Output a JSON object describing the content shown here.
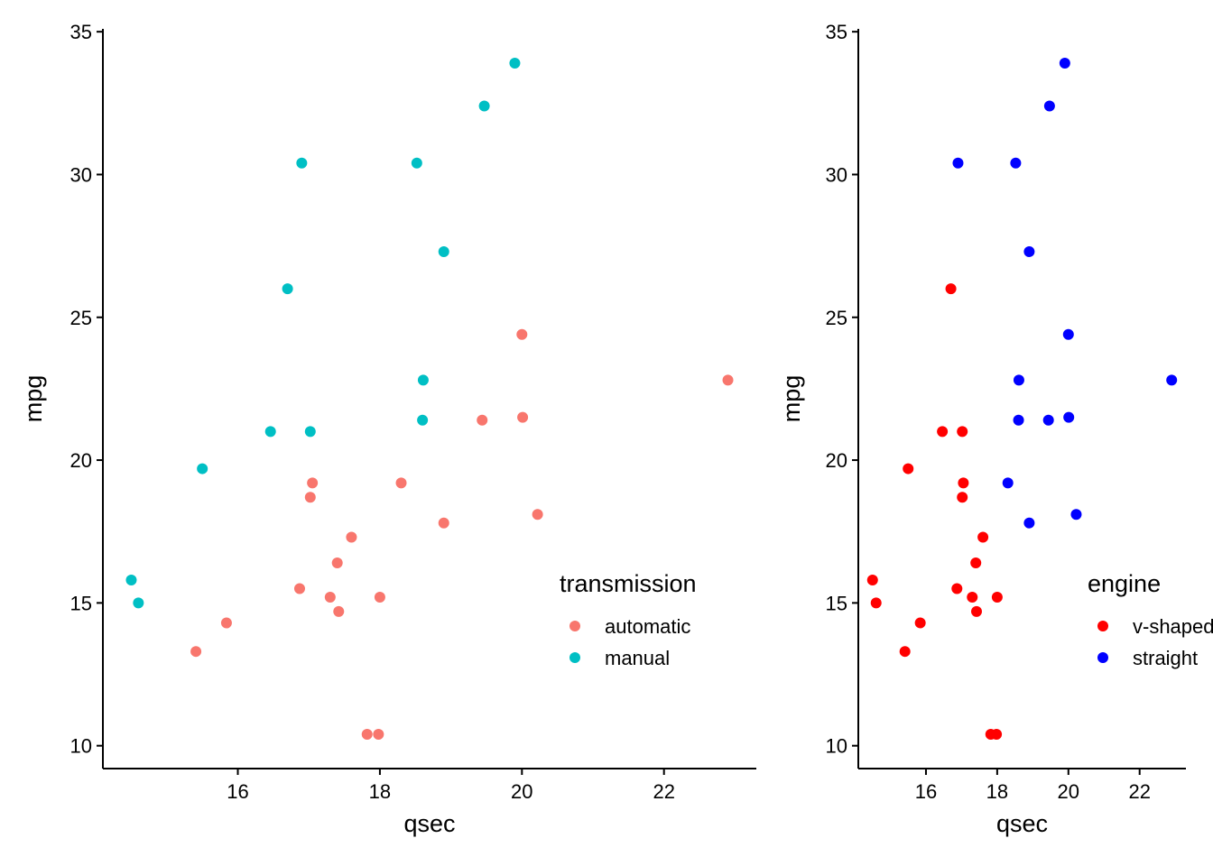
{
  "chart_data": [
    {
      "type": "scatter",
      "title": "",
      "xlabel": "qsec",
      "ylabel": "mpg",
      "xlim": [
        14.1,
        23.3
      ],
      "ylim": [
        9.2,
        35.1
      ],
      "xticks": [
        16,
        18,
        20,
        22
      ],
      "yticks": [
        10,
        15,
        20,
        25,
        30,
        35
      ],
      "grid": false,
      "legend": {
        "title": "transmission",
        "position": "bottom-right inside"
      },
      "series": [
        {
          "name": "automatic",
          "color": "#F8766D",
          "points": [
            {
              "x": 20.0,
              "y": 24.4
            },
            {
              "x": 22.9,
              "y": 22.8
            },
            {
              "x": 19.44,
              "y": 21.4
            },
            {
              "x": 20.01,
              "y": 21.5
            },
            {
              "x": 18.3,
              "y": 19.2
            },
            {
              "x": 17.05,
              "y": 19.2
            },
            {
              "x": 17.02,
              "y": 18.7
            },
            {
              "x": 18.9,
              "y": 17.8
            },
            {
              "x": 20.22,
              "y": 18.1
            },
            {
              "x": 17.6,
              "y": 17.3
            },
            {
              "x": 17.4,
              "y": 16.4
            },
            {
              "x": 16.87,
              "y": 15.5
            },
            {
              "x": 17.3,
              "y": 15.2
            },
            {
              "x": 18.0,
              "y": 15.2
            },
            {
              "x": 17.42,
              "y": 14.7
            },
            {
              "x": 15.84,
              "y": 14.3
            },
            {
              "x": 15.41,
              "y": 13.3
            },
            {
              "x": 17.82,
              "y": 10.4
            },
            {
              "x": 17.98,
              "y": 10.4
            }
          ]
        },
        {
          "name": "manual",
          "color": "#00BFC4",
          "points": [
            {
              "x": 19.9,
              "y": 33.9
            },
            {
              "x": 19.47,
              "y": 32.4
            },
            {
              "x": 16.9,
              "y": 30.4
            },
            {
              "x": 18.52,
              "y": 30.4
            },
            {
              "x": 18.9,
              "y": 27.3
            },
            {
              "x": 16.7,
              "y": 26.0
            },
            {
              "x": 18.61,
              "y": 22.8
            },
            {
              "x": 18.6,
              "y": 21.4
            },
            {
              "x": 16.46,
              "y": 21.0
            },
            {
              "x": 17.02,
              "y": 21.0
            },
            {
              "x": 15.5,
              "y": 19.7
            },
            {
              "x": 14.5,
              "y": 15.8
            },
            {
              "x": 14.6,
              "y": 15.0
            }
          ]
        }
      ]
    },
    {
      "type": "scatter",
      "title": "",
      "xlabel": "qsec",
      "ylabel": "mpg",
      "xlim": [
        14.1,
        23.3
      ],
      "ylim": [
        9.2,
        35.1
      ],
      "xticks": [
        16,
        18,
        20,
        22
      ],
      "yticks": [
        10,
        15,
        20,
        25,
        30,
        35
      ],
      "grid": false,
      "legend": {
        "title": "engine",
        "position": "bottom-right inside"
      },
      "series": [
        {
          "name": "v-shaped",
          "color": "#FF0000",
          "points": [
            {
              "x": 16.7,
              "y": 26.0
            },
            {
              "x": 16.46,
              "y": 21.0
            },
            {
              "x": 17.02,
              "y": 21.0
            },
            {
              "x": 15.5,
              "y": 19.7
            },
            {
              "x": 17.05,
              "y": 19.2
            },
            {
              "x": 17.02,
              "y": 18.7
            },
            {
              "x": 17.6,
              "y": 17.3
            },
            {
              "x": 17.4,
              "y": 16.4
            },
            {
              "x": 14.5,
              "y": 15.8
            },
            {
              "x": 16.87,
              "y": 15.5
            },
            {
              "x": 17.3,
              "y": 15.2
            },
            {
              "x": 18.0,
              "y": 15.2
            },
            {
              "x": 14.6,
              "y": 15.0
            },
            {
              "x": 17.42,
              "y": 14.7
            },
            {
              "x": 15.84,
              "y": 14.3
            },
            {
              "x": 15.41,
              "y": 13.3
            },
            {
              "x": 17.82,
              "y": 10.4
            },
            {
              "x": 17.98,
              "y": 10.4
            }
          ]
        },
        {
          "name": "straight",
          "color": "#0000FF",
          "points": [
            {
              "x": 19.9,
              "y": 33.9
            },
            {
              "x": 19.47,
              "y": 32.4
            },
            {
              "x": 16.9,
              "y": 30.4
            },
            {
              "x": 18.52,
              "y": 30.4
            },
            {
              "x": 18.9,
              "y": 27.3
            },
            {
              "x": 20.0,
              "y": 24.4
            },
            {
              "x": 18.61,
              "y": 22.8
            },
            {
              "x": 22.9,
              "y": 22.8
            },
            {
              "x": 18.6,
              "y": 21.4
            },
            {
              "x": 19.44,
              "y": 21.4
            },
            {
              "x": 20.01,
              "y": 21.5
            },
            {
              "x": 18.3,
              "y": 19.2
            },
            {
              "x": 18.9,
              "y": 17.8
            },
            {
              "x": 20.22,
              "y": 18.1
            }
          ]
        }
      ]
    }
  ]
}
